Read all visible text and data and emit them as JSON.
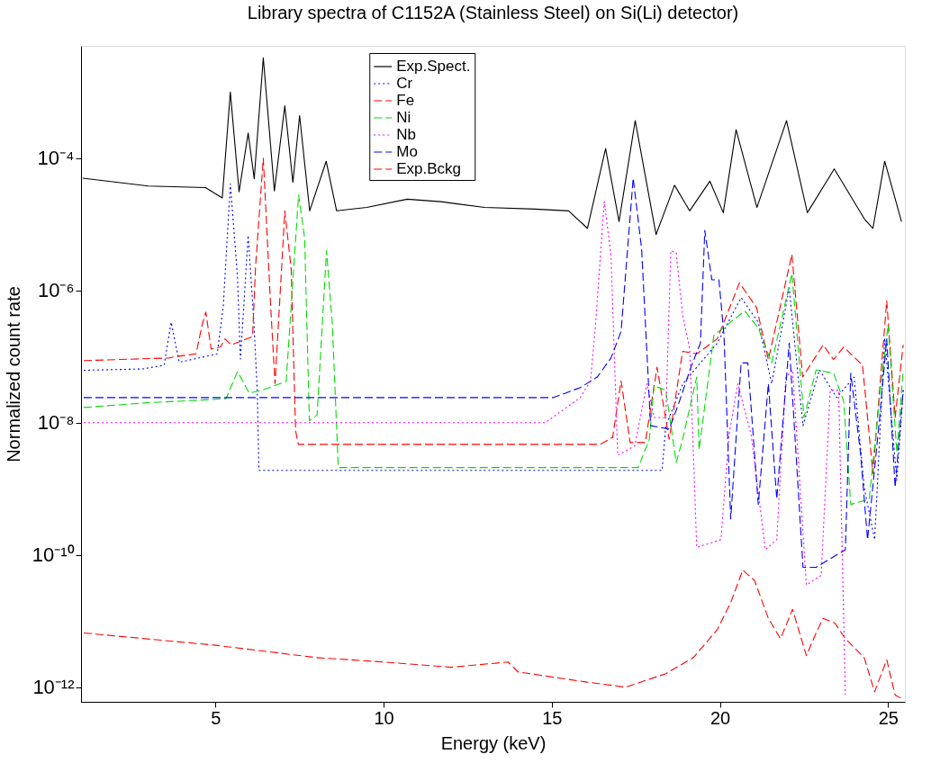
{
  "chart_data": {
    "type": "line",
    "title": "Library spectra of C1152A (Stainless Steel) on Si(Li) detector)",
    "xlabel": "Energy (keV)",
    "ylabel": "Normalized count rate",
    "xlim": [
      1,
      25.5
    ],
    "xticks": [
      5,
      10,
      15,
      20,
      25
    ],
    "ylim": [
      6e-13,
      0.005
    ],
    "log": true,
    "yticks": [
      {
        "value": 1e-12,
        "label": "10⁻¹²"
      },
      {
        "value": 1e-10,
        "label": "10⁻¹⁰"
      },
      {
        "value": 1e-08,
        "label": "10⁻⁸"
      },
      {
        "value": 1e-06,
        "label": "10⁻⁶"
      },
      {
        "value": 0.0001,
        "label": "10⁻⁴"
      }
    ],
    "grid": false,
    "legend": "top",
    "marker": "none",
    "series": [
      {
        "name": "Exp.Spect.",
        "color": "#000000",
        "line_style": "solid",
        "x": [
          1.05,
          3,
          4.7,
          5.2,
          5.44,
          5.7,
          5.97,
          6.15,
          6.42,
          6.75,
          7.06,
          7.3,
          7.5,
          7.8,
          8.29,
          8.6,
          9.5,
          10.7,
          11.7,
          13,
          14.5,
          15.5,
          16.06,
          16.6,
          17.0,
          17.48,
          18.1,
          18.65,
          19.1,
          19.7,
          20.1,
          20.48,
          21.1,
          21.98,
          22.6,
          23.4,
          24.3,
          24.55,
          24.9,
          25.4
        ],
        "values": [
          5e-05,
          3.8e-05,
          3.6e-05,
          2.5e-05,
          0.001,
          3.1e-05,
          0.00024,
          4.9e-05,
          0.0033,
          3.2e-05,
          0.00062,
          4.3e-05,
          0.00044,
          1.6e-05,
          9e-05,
          1.6e-05,
          1.8e-05,
          2.4e-05,
          2.2e-05,
          1.8e-05,
          1.7e-05,
          1.6e-05,
          8.7e-06,
          0.00014,
          1.1e-05,
          0.00037,
          7e-06,
          3.9e-05,
          1.6e-05,
          4.5e-05,
          1.5e-05,
          0.00027,
          1.8e-05,
          0.00037,
          1.5e-05,
          6.9e-05,
          1.2e-05,
          8.7e-06,
          9e-05,
          1.1e-05
        ]
      },
      {
        "name": "Cr",
        "color": "#0000ff",
        "line_style": "dotted",
        "x": [
          1.08,
          2.83,
          3.47,
          3.68,
          3.92,
          4.37,
          5.05,
          5.23,
          5.44,
          5.65,
          5.74,
          5.97,
          6.14,
          6.24,
          6.29,
          18.28,
          18.39,
          18.9,
          19.92,
          20.63,
          21.14,
          21.54,
          22.06,
          22.47,
          22.96,
          23.47,
          23.99,
          24.29,
          24.6,
          24.9,
          25.26,
          25.45
        ],
        "values": [
          6.2e-08,
          6.5e-08,
          7.4e-08,
          3.3e-07,
          8.2e-08,
          9.2e-08,
          1.1e-07,
          5.7e-07,
          4.1e-05,
          1.7e-06,
          9.2e-08,
          6.8e-06,
          3.3e-07,
          3.1e-08,
          1.9e-09,
          1.9e-09,
          9e-09,
          3.9e-08,
          1.6e-07,
          7.8e-07,
          3.3e-07,
          3.9e-08,
          1.1e-06,
          9e-09,
          6.3e-08,
          2.4e-08,
          4.9e-08,
          1.05e-09,
          1.7e-10,
          1.9e-07,
          1.35e-09,
          3.1e-08
        ]
      },
      {
        "name": "Fe",
        "color": "#ff0000",
        "line_style": "dashed",
        "x": [
          1.08,
          3.6,
          3.82,
          4.42,
          4.6,
          4.71,
          4.87,
          5.15,
          5.28,
          5.47,
          6.1,
          6.19,
          6.42,
          6.64,
          6.77,
          7.06,
          7.25,
          7.38,
          7.46,
          16.45,
          16.81,
          17.06,
          17.33,
          17.78,
          18.13,
          18.49,
          18.89,
          19.31,
          19.92,
          20.58,
          21.09,
          21.44,
          22.14,
          22.46,
          23.07,
          23.38,
          23.68,
          24.24,
          24.55,
          24.96,
          25.21,
          25.45
        ],
        "values": [
          8.7e-08,
          9.5e-08,
          1e-07,
          1.1e-07,
          3e-07,
          4.7e-07,
          1.3e-07,
          1.4e-07,
          1.85e-07,
          1.5e-07,
          2e-07,
          2.3e-06,
          0.0001,
          5.7e-07,
          3.9e-08,
          1.6e-05,
          2.1e-06,
          7.6e-09,
          4.7e-09,
          4.7e-09,
          6e-09,
          4.3e-08,
          5e-09,
          5e-09,
          6.9e-08,
          5.6e-09,
          1.2e-07,
          1.1e-07,
          1.85e-07,
          1.3e-06,
          5.5e-07,
          9e-08,
          3.5e-06,
          4.9e-08,
          1.5e-07,
          9e-08,
          1.4e-07,
          7.4e-08,
          1.7e-09,
          7e-07,
          1.2e-08,
          1.5e-07
        ]
      },
      {
        "name": "Ni",
        "color": "#00dd00",
        "line_style": "dashed",
        "x": [
          1.08,
          2.96,
          5.31,
          5.65,
          5.82,
          6.0,
          6.38,
          7.1,
          7.47,
          7.65,
          7.79,
          8.02,
          8.3,
          8.47,
          8.65,
          17.57,
          17.9,
          18.04,
          18.39,
          18.7,
          18.89,
          19.31,
          19.38,
          19.82,
          20.74,
          21.14,
          21.54,
          22.14,
          22.5,
          22.86,
          23.38,
          23.68,
          23.89,
          24.44,
          24.79,
          25.0,
          25.26,
          25.45
        ],
        "values": [
          1.7e-08,
          2e-08,
          2.3e-08,
          5.9e-08,
          4.2e-08,
          2.8e-08,
          3.1e-08,
          4.2e-08,
          2.8e-05,
          6.2e-06,
          1.07e-08,
          1.3e-08,
          4e-06,
          3.3e-07,
          2.1e-09,
          2.1e-09,
          5.6e-09,
          3.6e-08,
          3.1e-08,
          2.5e-09,
          5.6e-09,
          4.9e-08,
          3.9e-09,
          2.1e-07,
          4.9e-07,
          2.7e-07,
          8e-08,
          1.8e-06,
          1.2e-08,
          6.3e-08,
          5.6e-08,
          2.1e-08,
          5.8e-10,
          7e-10,
          3.9e-08,
          3e-07,
          3.5e-09,
          6.3e-08
        ]
      },
      {
        "name": "Nb",
        "color": "#ff00ff",
        "line_style": "dotted",
        "x": [
          1.08,
          14.8,
          15.85,
          16.15,
          16.3,
          16.56,
          16.76,
          16.96,
          17.47,
          17.83,
          18.04,
          18.39,
          18.54,
          18.7,
          18.89,
          19.1,
          19.31,
          20.03,
          20.27,
          20.53,
          20.93,
          21.35,
          21.69,
          21.96,
          22.16,
          22.57,
          23.01,
          23.28,
          23.53,
          23.73
        ],
        "values": [
          1e-08,
          1e-08,
          2.4e-08,
          4.3e-08,
          3e-07,
          2.2e-05,
          3.4e-06,
          3.2e-09,
          4.5e-09,
          3.9e-08,
          1.2e-08,
          1.2e-08,
          4e-06,
          3.7e-06,
          4.3e-07,
          1.3e-07,
          1.3e-10,
          1.7e-10,
          6.5e-09,
          3.9e-08,
          6.5e-09,
          1.2e-10,
          1.7e-10,
          4.9e-08,
          6.3e-08,
          3.5e-11,
          4.9e-11,
          3.1e-08,
          3.1e-08,
          7.6e-13
        ]
      },
      {
        "name": "Mo",
        "color": "#0000ff",
        "line_style": "dashed",
        "x": [
          1.08,
          15.05,
          15.85,
          16.35,
          16.76,
          17.06,
          17.42,
          17.67,
          17.94,
          18.49,
          18.75,
          19.15,
          19.42,
          19.55,
          19.76,
          19.97,
          20.12,
          20.32,
          20.63,
          20.83,
          21.14,
          21.44,
          21.69,
          22.06,
          22.47,
          22.86,
          23.73,
          23.89,
          24.18,
          24.39,
          24.75,
          24.96,
          25.21,
          25.45
        ],
        "values": [
          2.4e-08,
          2.4e-08,
          3.4e-08,
          4.9e-08,
          9.5e-08,
          2.4e-07,
          5e-05,
          4.3e-06,
          9e-09,
          8e-09,
          1.8e-08,
          7.2e-08,
          1.6e-07,
          8.1e-06,
          1.45e-06,
          1.45e-06,
          2.1e-07,
          3.5e-10,
          8e-08,
          8e-08,
          5.8e-10,
          3.9e-08,
          7e-10,
          1.6e-07,
          6.5e-11,
          6.5e-11,
          1.2e-10,
          5.6e-08,
          3.5e-09,
          1.7e-10,
          1.2e-08,
          1.85e-07,
          1.05e-09,
          3.1e-08
        ]
      },
      {
        "name": "Exp.Bckg",
        "color": "#ff0000",
        "line_style": "dashed",
        "x": [
          1.08,
          5,
          8,
          10,
          12,
          13.7,
          14,
          16,
          17.2,
          18.39,
          19.21,
          19.92,
          20.32,
          20.68,
          21.03,
          21.44,
          21.8,
          22.16,
          22.57,
          22.86,
          23.07,
          23.42,
          23.73,
          24.29,
          24.6,
          24.96,
          25.21,
          25.45
        ],
        "values": [
          6.6e-12,
          4.3e-12,
          2.8e-12,
          2.4e-12,
          2e-12,
          2.4e-12,
          1.7e-12,
          1.2e-12,
          1e-12,
          1.6e-12,
          2.8e-12,
          7.4e-12,
          1.9e-11,
          5.9e-11,
          4.1e-11,
          1.1e-11,
          5.4e-12,
          1.5e-11,
          3e-12,
          6.6e-12,
          1.1e-11,
          9.3e-12,
          5.4e-12,
          2.8e-12,
          8.5e-13,
          2.6e-12,
          7.6e-13,
          6.5e-13
        ]
      }
    ]
  }
}
